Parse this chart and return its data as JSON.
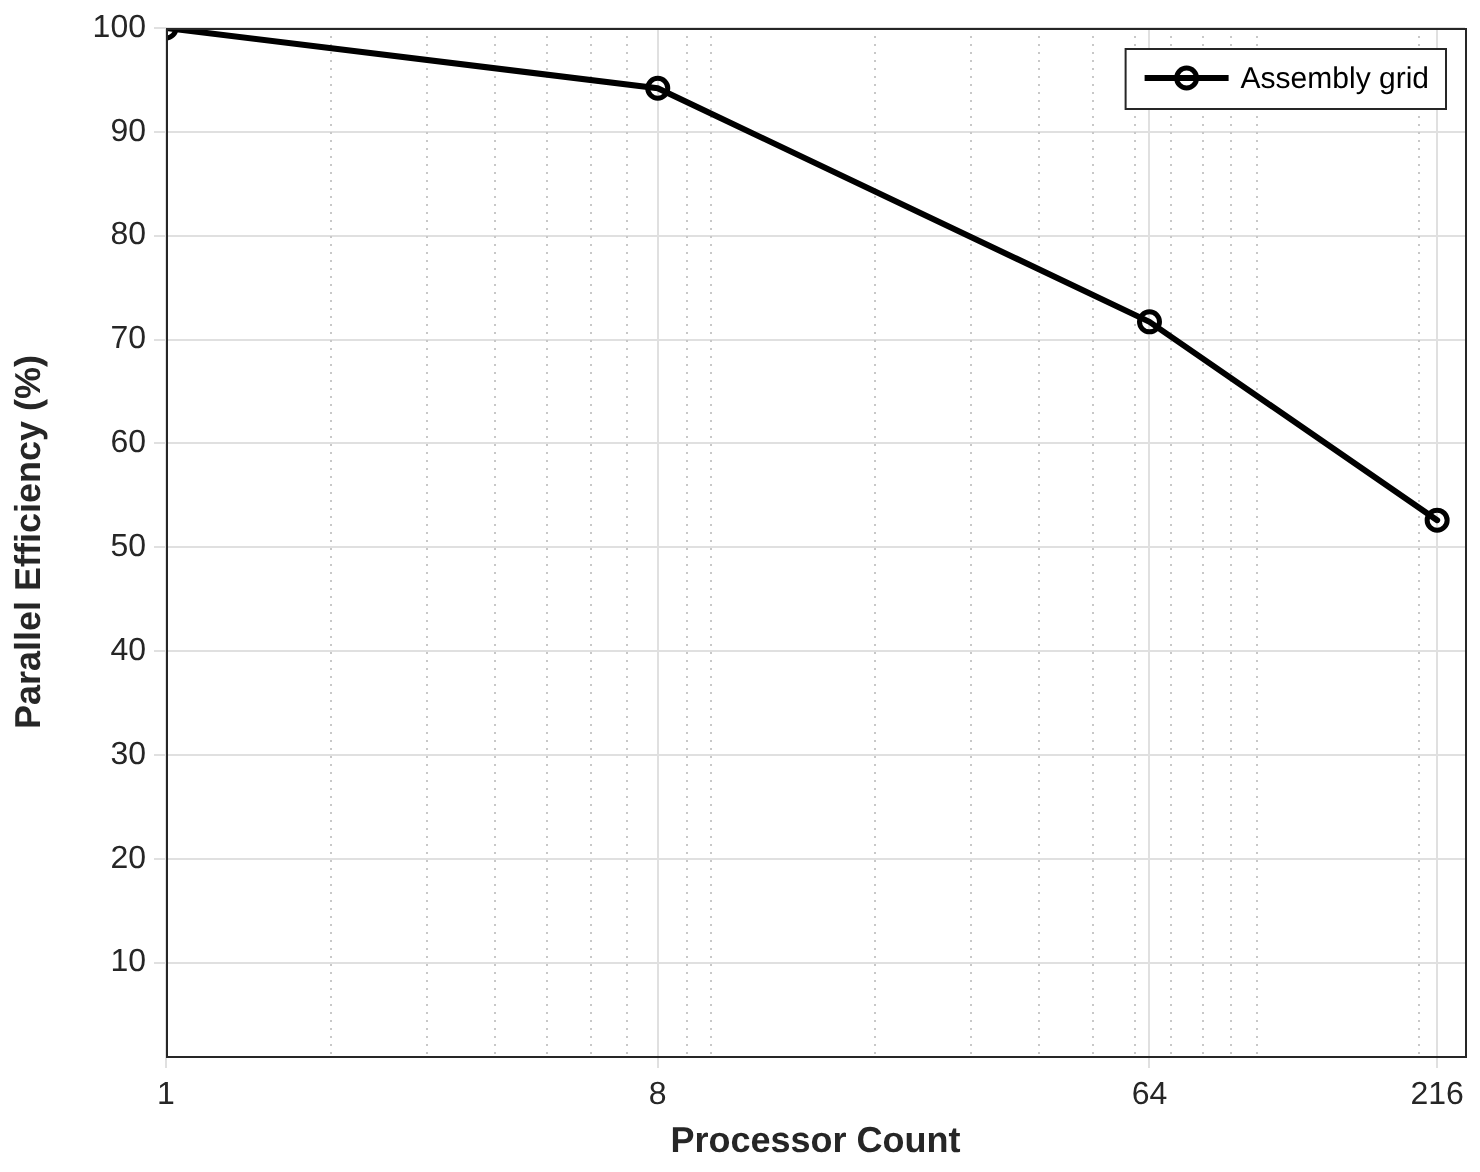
{
  "chart_data": {
    "type": "line",
    "xlabel": "Processor Count",
    "ylabel": "Parallel Efficiency (%)",
    "x": [
      1,
      8,
      64,
      216
    ],
    "series": [
      {
        "name": "Assembly grid",
        "color": "#000000",
        "values": [
          100,
          94.2,
          71.7,
          52.6
        ]
      }
    ],
    "log": "x",
    "xlim": [
      1,
      243
    ],
    "xticks": [
      1,
      8,
      64,
      216
    ],
    "ylim": [
      1,
      100
    ],
    "yticks": [
      10,
      20,
      30,
      40,
      50,
      60,
      70,
      80,
      90,
      100
    ],
    "grid": true,
    "legend": "top right",
    "marker": "circle",
    "line_style": "solid"
  }
}
